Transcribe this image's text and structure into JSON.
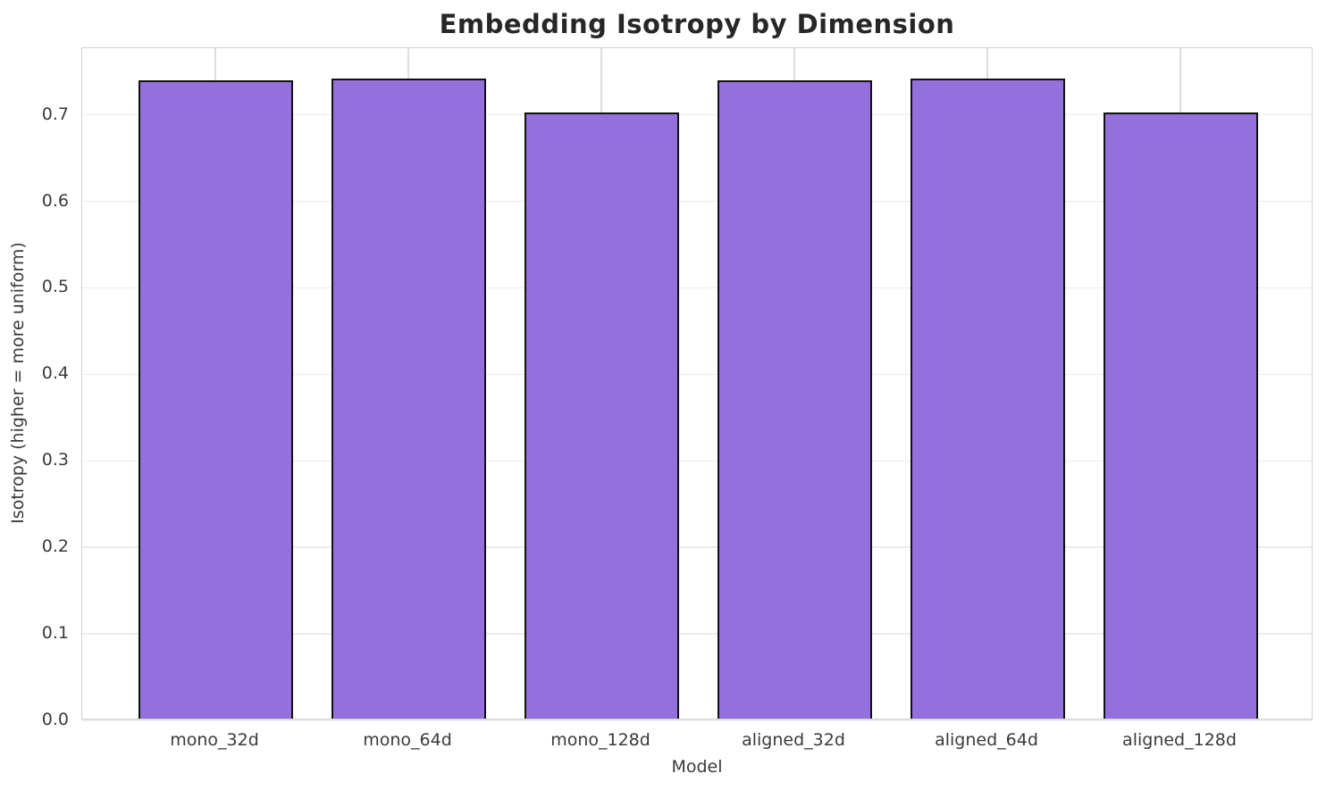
{
  "chart_data": {
    "type": "bar",
    "title": "Embedding Isotropy by Dimension",
    "xlabel": "Model",
    "ylabel": "Isotropy (higher = more uniform)",
    "categories": [
      "mono_32d",
      "mono_64d",
      "mono_128d",
      "aligned_32d",
      "aligned_64d",
      "aligned_128d"
    ],
    "values": [
      0.738,
      0.74,
      0.701,
      0.738,
      0.74,
      0.701
    ],
    "ylim": [
      0,
      0.777
    ],
    "yticks": [
      0.0,
      0.1,
      0.2,
      0.3,
      0.4,
      0.5,
      0.6,
      0.7
    ],
    "ytick_labels": [
      "0.0",
      "0.1",
      "0.2",
      "0.3",
      "0.4",
      "0.5",
      "0.6",
      "0.7"
    ],
    "grid": true,
    "legend": "none",
    "bar_color": "#9370DB",
    "bar_edge_color": "#111111",
    "grid_color": "#ececec",
    "frame_color": "#cfcfcf",
    "title_color": "#272727",
    "tick_color": "#3a3a3a"
  }
}
